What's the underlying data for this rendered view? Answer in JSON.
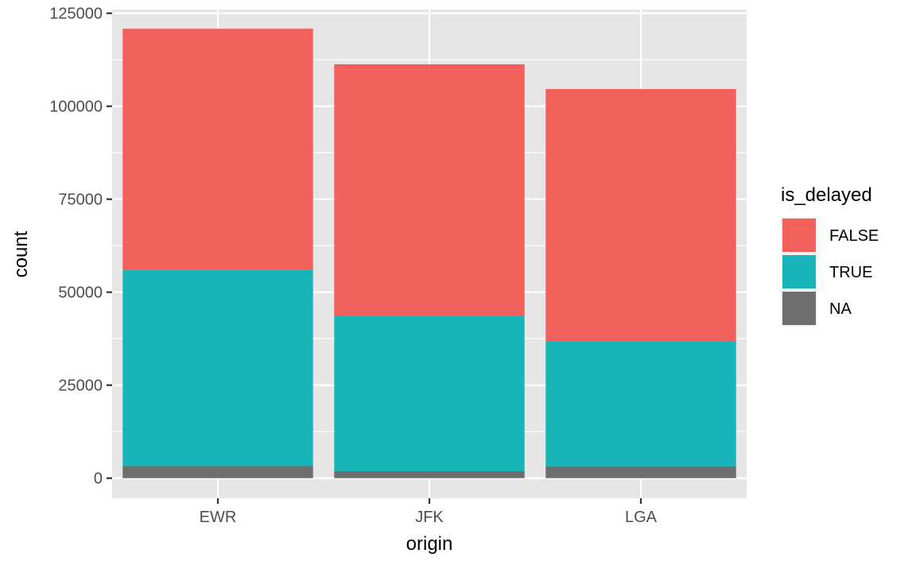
{
  "chart_data": {
    "type": "bar",
    "stacked": true,
    "categories": [
      "EWR",
      "JFK",
      "LGA"
    ],
    "series": [
      {
        "name": "NA",
        "color": "#6e6e6e",
        "values": [
          3239,
          1863,
          3153
        ]
      },
      {
        "name": "TRUE",
        "color": "#18b4b8",
        "values": [
          52704,
          41840,
          33708
        ]
      },
      {
        "name": "FALSE",
        "color": "#f2605c",
        "values": [
          64892,
          67576,
          67759
        ]
      }
    ],
    "xlabel": "origin",
    "ylabel": "count",
    "ylim": [
      -5400,
      126000
    ],
    "yticks": [
      0,
      25000,
      50000,
      75000,
      100000,
      125000
    ],
    "ytick_labels": [
      "0",
      "25000",
      "50000",
      "75000",
      "100000",
      "125000"
    ],
    "legend": {
      "title": "is_delayed",
      "position": "right",
      "entries": [
        {
          "label": "FALSE",
          "color": "#f2605c"
        },
        {
          "label": "TRUE",
          "color": "#18b4b8"
        },
        {
          "label": "NA",
          "color": "#6e6e6e"
        }
      ]
    },
    "grid": true,
    "panel_background": "#e6e6e6"
  }
}
